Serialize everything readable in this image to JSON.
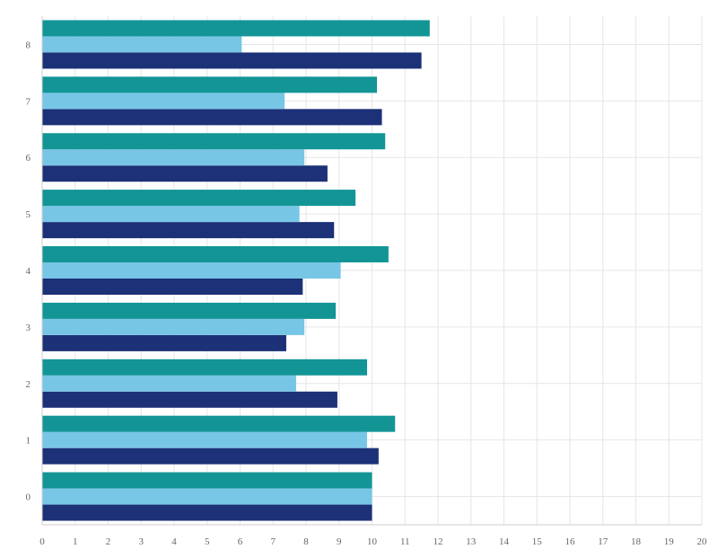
{
  "chart_data": {
    "type": "bar",
    "orientation": "horizontal",
    "categories": [
      "0",
      "1",
      "2",
      "3",
      "4",
      "5",
      "6",
      "7",
      "8"
    ],
    "series": [
      {
        "values": [
          10.0,
          10.2,
          8.95,
          7.4,
          7.9,
          8.85,
          8.65,
          10.3,
          11.5
        ]
      },
      {
        "values": [
          10.0,
          9.85,
          7.7,
          7.95,
          9.05,
          7.8,
          7.95,
          7.35,
          6.05
        ]
      },
      {
        "values": [
          10.0,
          10.7,
          9.85,
          8.9,
          10.5,
          9.5,
          10.4,
          10.15,
          11.75
        ]
      }
    ],
    "colors": [
      "#1c3177",
      "#78c6e5",
      "#139596"
    ],
    "xlim": [
      0,
      20
    ],
    "xticks": [
      "0",
      "1",
      "2",
      "3",
      "4",
      "5",
      "6",
      "7",
      "8",
      "9",
      "10",
      "11",
      "12",
      "13",
      "14",
      "15",
      "16",
      "17",
      "18",
      "19",
      "20"
    ],
    "grid": true,
    "title": "",
    "xlabel": "",
    "ylabel": ""
  }
}
